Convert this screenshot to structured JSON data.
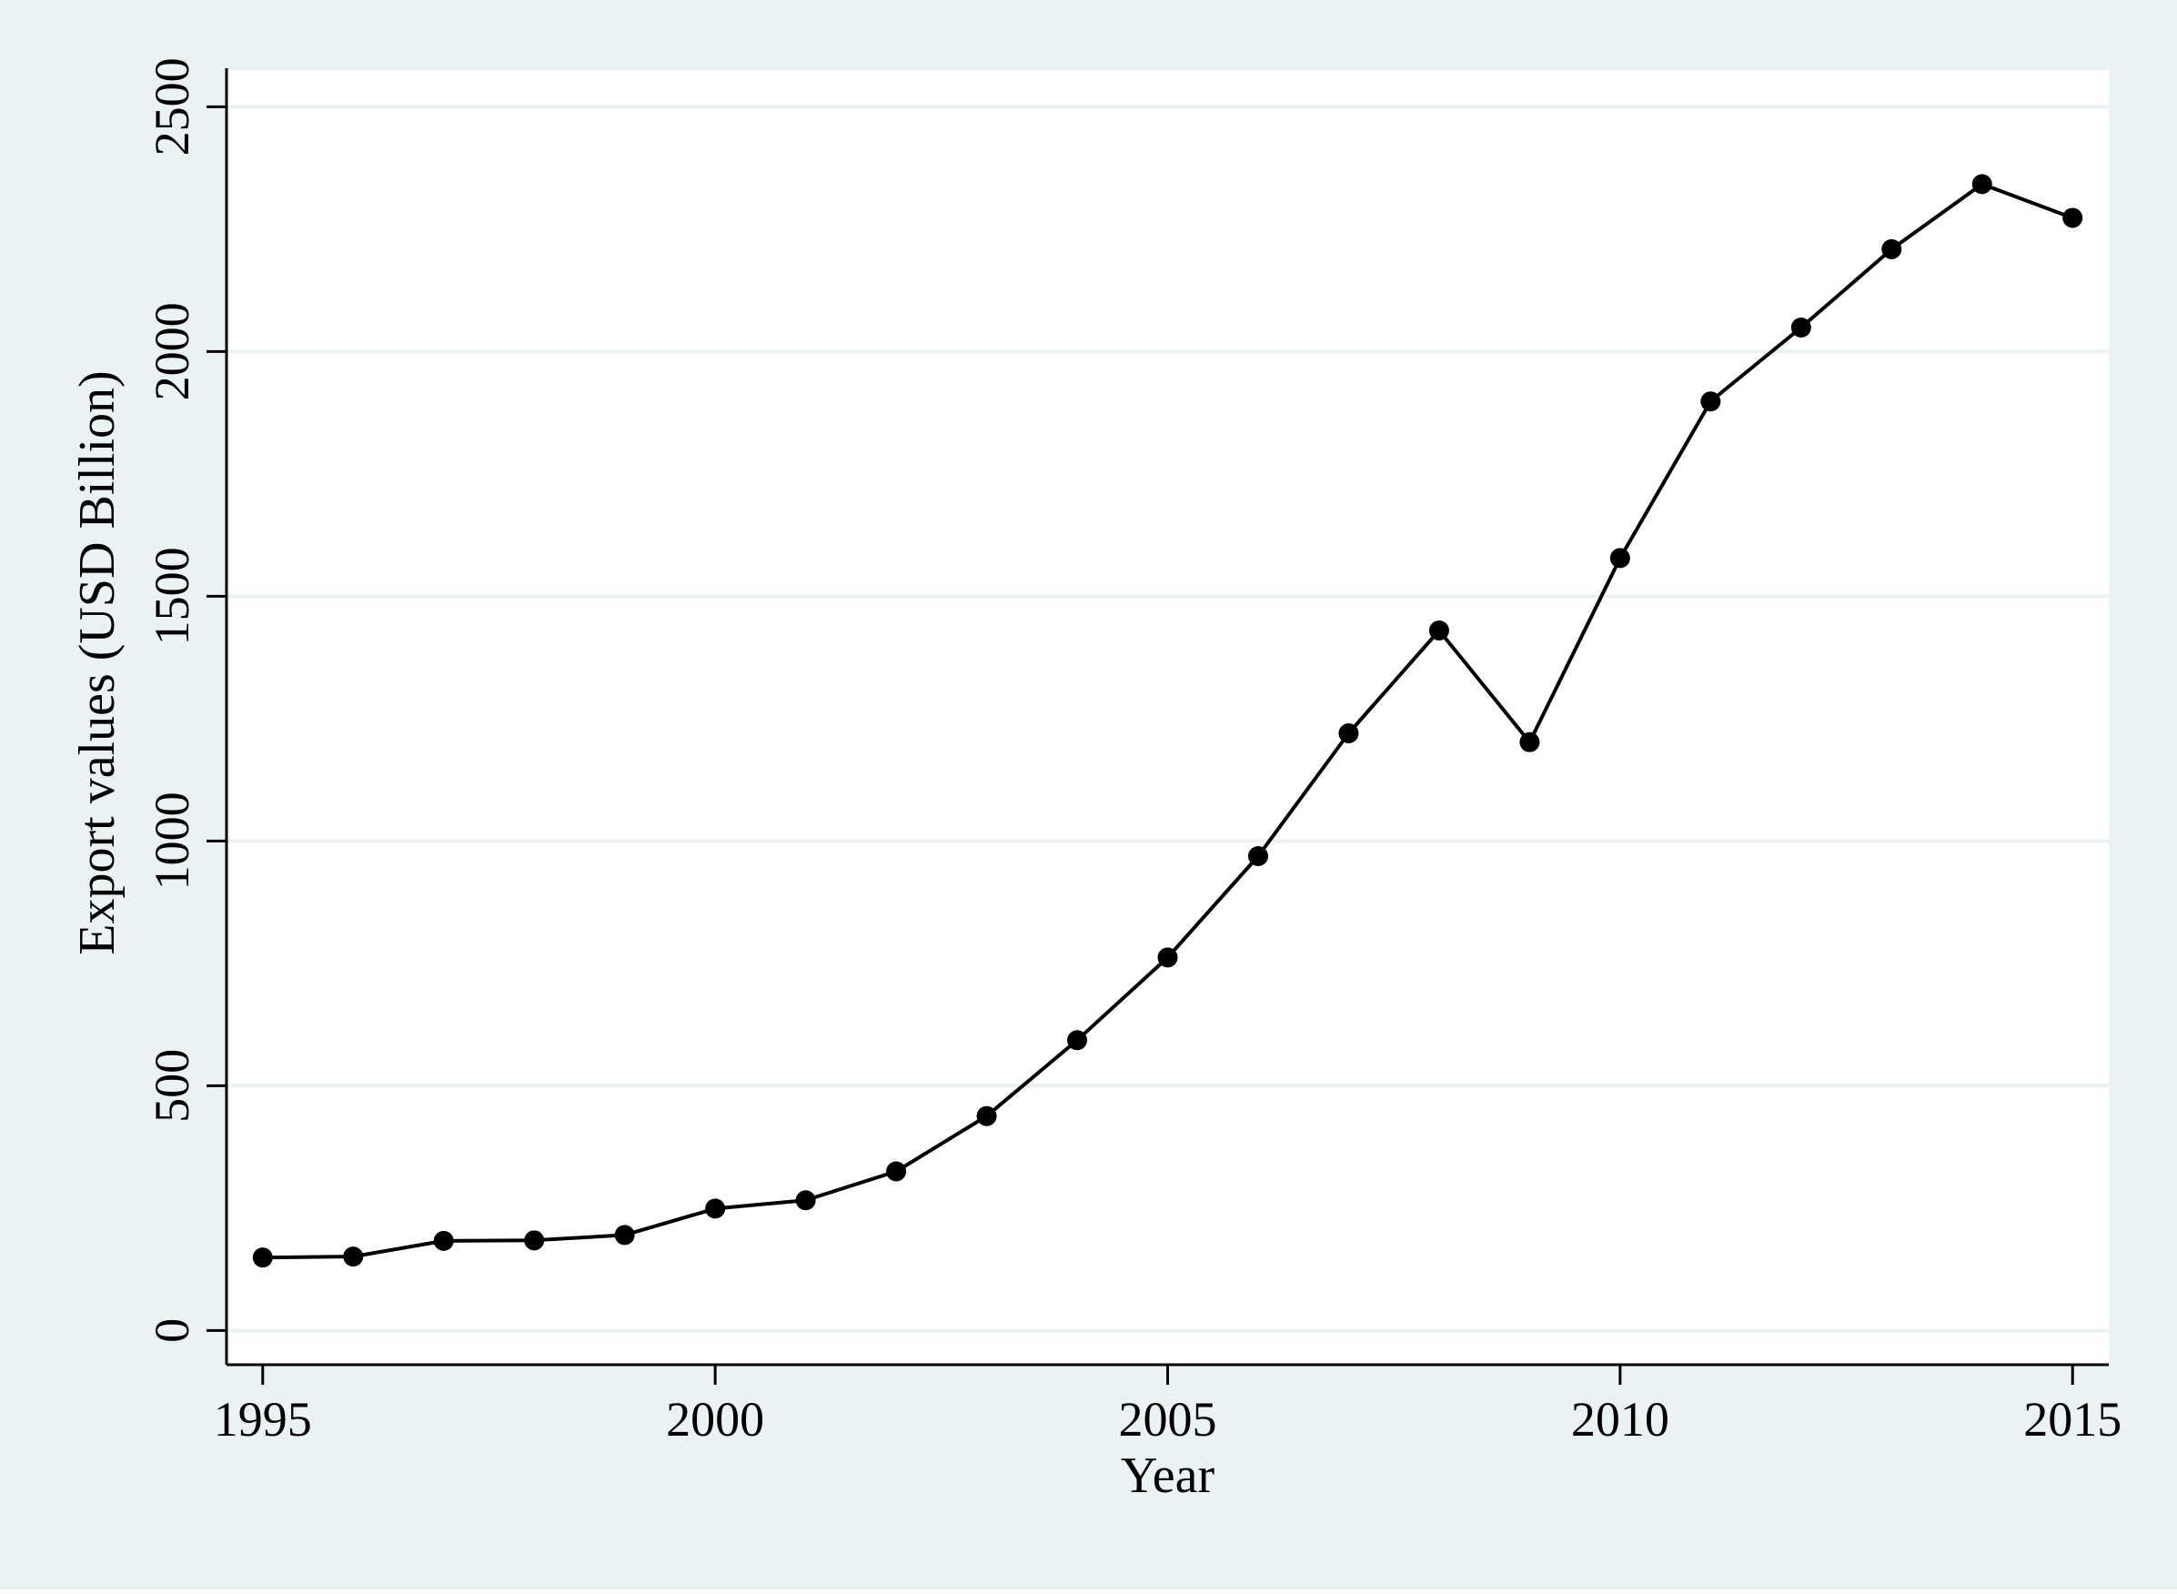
{
  "colors": {
    "outer_background": "#eaf2f3",
    "plot_background": "#ffffff",
    "gridline": "#eaf2f3",
    "line": "#000000",
    "marker": "#000000"
  },
  "chart_data": {
    "type": "line",
    "title": "",
    "xlabel": "Year",
    "ylabel": "Export values (USD Billion)",
    "xlim": [
      1994.6,
      2015.4
    ],
    "ylim": [
      -70,
      2575
    ],
    "x_ticks": [
      1995,
      2000,
      2005,
      2010,
      2015
    ],
    "x_tick_labels": [
      "1995",
      "2000",
      "2005",
      "2010",
      "2015"
    ],
    "y_ticks": [
      0,
      500,
      1000,
      1500,
      2000,
      2500
    ],
    "y_tick_labels": [
      "0",
      "500",
      "1000",
      "1500",
      "2000",
      "2500"
    ],
    "grid": "horizontal",
    "legend": "none",
    "series": [
      {
        "x": [
          1995,
          1996,
          1997,
          1998,
          1999,
          2000,
          2001,
          2002,
          2003,
          2004,
          2005,
          2006,
          2007,
          2008,
          2009,
          2010,
          2011,
          2012,
          2013,
          2014,
          2015
        ],
        "values": [
          149,
          151,
          183,
          184,
          195,
          249,
          266,
          325,
          438,
          593,
          762,
          969,
          1220,
          1430,
          1202,
          1578,
          1898,
          2049,
          2209,
          2342,
          2273
        ],
        "marker": "circle"
      }
    ]
  }
}
